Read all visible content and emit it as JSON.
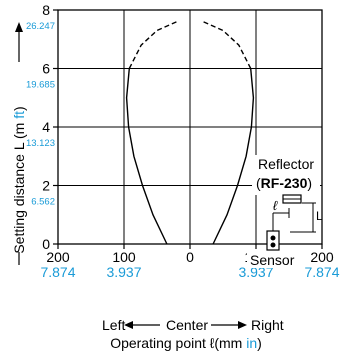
{
  "chart_data": {
    "type": "line",
    "x_axis": {
      "range": [
        -200,
        200
      ],
      "ticks": [
        {
          "value": -200,
          "label": "200",
          "label_in": "7.874"
        },
        {
          "value": -100,
          "label": "100",
          "label_in": "3.937"
        },
        {
          "value": 0,
          "label": "0",
          "label_in": ""
        },
        {
          "value": 100,
          "label": "100",
          "label_in": "3.937"
        },
        {
          "value": 200,
          "label": "200",
          "label_in": "7.874"
        }
      ],
      "direction_left": "Left",
      "direction_center": "Center",
      "direction_right": "Right",
      "label_prefix": "Operating point ℓ(mm ",
      "label_unit": "in",
      "label_suffix": ")"
    },
    "y_axis": {
      "range": [
        0,
        8
      ],
      "ticks": [
        {
          "value": 0,
          "label": "0",
          "label_ft": ""
        },
        {
          "value": 2,
          "label": "2",
          "label_ft": "6.562"
        },
        {
          "value": 4,
          "label": "4",
          "label_ft": "13.123"
        },
        {
          "value": 6,
          "label": "6",
          "label_ft": "19.685"
        },
        {
          "value": 8,
          "label": "8",
          "label_ft": "26.247"
        }
      ],
      "label_prefix": "Setting distance L (m ",
      "label_unit": "ft",
      "label_suffix": ")"
    },
    "grid": true,
    "series": [
      {
        "solid": [
          [
            -35,
            0
          ],
          [
            -56,
            1
          ],
          [
            -72,
            2
          ],
          [
            -85,
            3
          ],
          [
            -93,
            4
          ],
          [
            -96,
            5
          ],
          [
            -92,
            6
          ]
        ],
        "dashed": [
          [
            -92,
            6
          ],
          [
            -74,
            6.8
          ],
          [
            -50,
            7.3
          ],
          [
            -20,
            7.6
          ]
        ]
      },
      {
        "solid": [
          [
            35,
            0
          ],
          [
            56,
            1
          ],
          [
            72,
            2
          ],
          [
            85,
            3
          ],
          [
            93,
            4
          ],
          [
            96,
            5
          ],
          [
            92,
            6
          ]
        ],
        "dashed": [
          [
            92,
            6
          ],
          [
            74,
            6.8
          ],
          [
            50,
            7.3
          ],
          [
            20,
            7.6
          ]
        ]
      }
    ],
    "inset": {
      "reflector_label": "Reflector",
      "reflector_model": "RF-230",
      "sensor_label": "Sensor",
      "l_symbol": "ℓ",
      "L_symbol": "L"
    }
  },
  "colors": {
    "axis": "#000000",
    "grid": "#000000",
    "curve": "#000000",
    "secondary_units": "#1a9bd7"
  }
}
